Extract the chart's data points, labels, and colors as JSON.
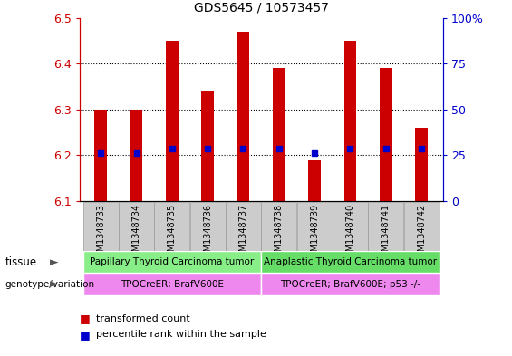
{
  "title": "GDS5645 / 10573457",
  "samples": [
    "GSM1348733",
    "GSM1348734",
    "GSM1348735",
    "GSM1348736",
    "GSM1348737",
    "GSM1348738",
    "GSM1348739",
    "GSM1348740",
    "GSM1348741",
    "GSM1348742"
  ],
  "transformed_count": [
    6.3,
    6.3,
    6.45,
    6.34,
    6.47,
    6.39,
    6.19,
    6.45,
    6.39,
    6.26
  ],
  "percentile_rank_val": [
    6.205,
    6.205,
    6.215,
    6.215,
    6.215,
    6.215,
    6.205,
    6.215,
    6.215,
    6.215
  ],
  "ylim_left": [
    6.1,
    6.5
  ],
  "yticks_left": [
    6.1,
    6.2,
    6.3,
    6.4,
    6.5
  ],
  "yticks_right_labels": [
    "0",
    "25",
    "50",
    "75",
    "100%"
  ],
  "bar_color": "#cc0000",
  "dot_color": "#0000cc",
  "bar_bottom": 6.1,
  "tissue_groups": [
    {
      "label": "Papillary Thyroid Carcinoma tumor",
      "start": 0,
      "end": 5,
      "color": "#88ee88"
    },
    {
      "label": "Anaplastic Thyroid Carcinoma tumor",
      "start": 5,
      "end": 10,
      "color": "#66dd66"
    }
  ],
  "genotype_groups": [
    {
      "label": "TPOCreER; BrafV600E",
      "start": 0,
      "end": 5,
      "color": "#ee88ee"
    },
    {
      "label": "TPOCreER; BrafV600E; p53 -/-",
      "start": 5,
      "end": 10,
      "color": "#ee88ee"
    }
  ],
  "legend_items": [
    {
      "label": "transformed count",
      "color": "#cc0000"
    },
    {
      "label": "percentile rank within the sample",
      "color": "#0000cc"
    }
  ],
  "left_axis_color": "#cc0000",
  "right_axis_color": "#0000cc",
  "background_color": "#ffffff",
  "sample_bg_color": "#cccccc",
  "bar_width": 0.35
}
